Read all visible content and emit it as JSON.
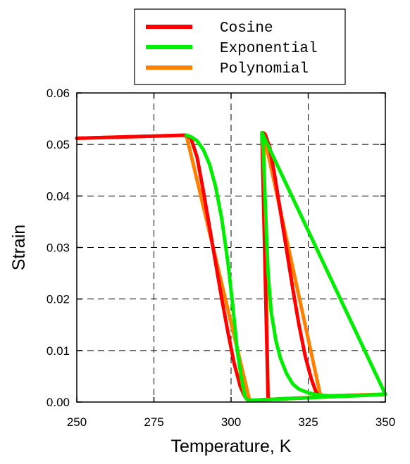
{
  "chart_data": {
    "type": "line",
    "title": "",
    "xlabel": "Temperature, K",
    "ylabel": "Strain",
    "xlim": [
      250,
      350
    ],
    "ylim": [
      0,
      0.06
    ],
    "xticks": [
      250,
      275,
      300,
      325,
      350
    ],
    "yticks": [
      0.0,
      0.01,
      0.02,
      0.03,
      0.04,
      0.05,
      0.06
    ],
    "xtick_labels": [
      "250",
      "275",
      "300",
      "325",
      "350"
    ],
    "ytick_labels": [
      "0.00",
      "0.01",
      "0.02",
      "0.03",
      "0.04",
      "0.05",
      "0.06"
    ],
    "grid": true,
    "legend_position": "top-center, above plot",
    "series": [
      {
        "name": "Cosine",
        "color": "#ff0000",
        "x": [
          250,
          285.5,
          287,
          289,
          291,
          293,
          295,
          297,
          299,
          301,
          303,
          304.5,
          305.5,
          306,
          312,
          330,
          350,
          350,
          330,
          312,
          310,
          311,
          312.5,
          314,
          316,
          318,
          320,
          322,
          324,
          326,
          327.5,
          328.5,
          329
        ],
        "y": [
          0.0512,
          0.0518,
          0.0512,
          0.0475,
          0.041,
          0.034,
          0.027,
          0.02,
          0.0135,
          0.0075,
          0.003,
          0.001,
          0.0003,
          0.0003,
          0.0005,
          0.001,
          0.0015,
          0.0015,
          0.001,
          0.0005,
          0.0523,
          0.052,
          0.0495,
          0.0445,
          0.037,
          0.0295,
          0.022,
          0.015,
          0.009,
          0.0045,
          0.002,
          0.0012,
          0.001
        ]
      },
      {
        "name": "Exponential",
        "color": "#00ee00",
        "x": [
          285.5,
          287,
          289,
          291,
          293,
          295,
          297,
          299,
          300.5,
          302,
          303.5,
          304.5,
          305.5,
          306,
          312,
          350,
          310,
          310.5,
          311,
          311.5,
          312,
          313,
          314.5,
          316,
          318,
          320,
          322,
          325,
          328,
          332,
          340,
          350
        ],
        "y": [
          0.0518,
          0.0515,
          0.0507,
          0.049,
          0.0462,
          0.0418,
          0.0355,
          0.027,
          0.019,
          0.01,
          0.004,
          0.001,
          0.0003,
          0.0003,
          0.0005,
          0.0015,
          0.0523,
          0.048,
          0.04,
          0.032,
          0.025,
          0.0175,
          0.012,
          0.0085,
          0.0055,
          0.0035,
          0.0025,
          0.0018,
          0.0014,
          0.0012,
          0.0012,
          0.0015
        ]
      },
      {
        "name": "Polynomial",
        "color": "#ff8000",
        "x": [
          250,
          285.5,
          306,
          306,
          312,
          350,
          350,
          312,
          310.5,
          329,
          330,
          350
        ],
        "y": [
          0.0512,
          0.0518,
          0.0003,
          0.0003,
          0.0005,
          0.0015,
          0.0015,
          0.0005,
          0.0523,
          0.0012,
          0.0012,
          0.0015
        ]
      }
    ]
  }
}
